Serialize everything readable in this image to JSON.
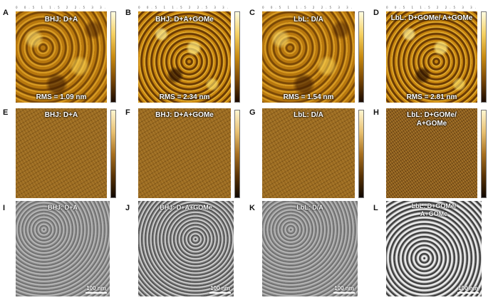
{
  "panels": {
    "A": {
      "letter": "A",
      "label": "BHJ: D+A",
      "rms": "RMS = 1.09 nm"
    },
    "B": {
      "letter": "B",
      "label": "BHJ: D+A+GOMe",
      "rms": "RMS = 2.34 nm"
    },
    "C": {
      "letter": "C",
      "label": "LbL: D/A",
      "rms": "RMS = 1.54 nm"
    },
    "D": {
      "letter": "D",
      "label": "LbL: D+GOMe/ A+GOMe",
      "rms": "RMS = 2.81 nm"
    },
    "E": {
      "letter": "E",
      "label": "BHJ: D+A"
    },
    "F": {
      "letter": "F",
      "label": "BHJ: D+A+GOMe"
    },
    "G": {
      "letter": "G",
      "label": "LbL: D/A"
    },
    "H": {
      "letter": "H",
      "label_line1": "LbL: D+GOMe/",
      "label_line2": "A+GOMe"
    },
    "I": {
      "letter": "I",
      "label": "BHJ: D+A",
      "scale": "100 nm"
    },
    "J": {
      "letter": "J",
      "label": "BHJ: D+A+GOMe",
      "scale": "100 nm"
    },
    "K": {
      "letter": "K",
      "label": "LbL: D/A",
      "scale": "100 nm"
    },
    "L": {
      "letter": "L",
      "label_line1": "LbL: D+GOMe/",
      "label_line2": "A+GOMe",
      "scale": "100 nm"
    }
  },
  "axis_ticks": "0 0.5 1 1.5 2 2.5 3 3.5 4 4.5 5 μm",
  "colors": {
    "afm_height": "#a8680c",
    "afm_phase": "#9a6a20",
    "tem": "#9a9a9a"
  }
}
